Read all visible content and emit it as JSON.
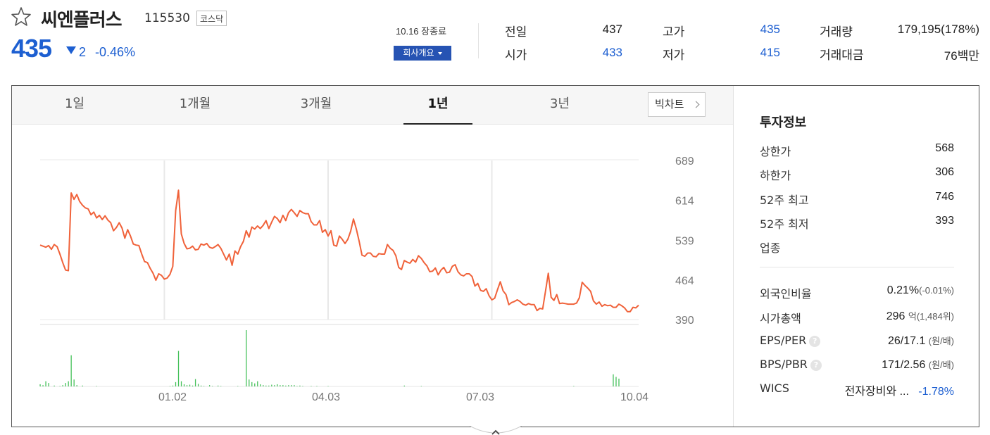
{
  "stock": {
    "name": "씨엔플러스",
    "code": "115530",
    "market": "코스닥",
    "price": "435",
    "change": "2",
    "change_rate": "-0.46%",
    "close_label": "10.16 장종료",
    "overview_btn": "회사개요"
  },
  "quote": {
    "prev_label": "전일",
    "prev": "437",
    "open_label": "시가",
    "open": "433",
    "high_label": "고가",
    "high": "435",
    "low_label": "저가",
    "low": "415",
    "volume_label": "거래량",
    "volume": "179,195(178%)",
    "amount_label": "거래대금",
    "amount": "76백만"
  },
  "tabs": [
    {
      "label": "1일",
      "active": false
    },
    {
      "label": "1개월",
      "active": false
    },
    {
      "label": "3개월",
      "active": false
    },
    {
      "label": "1년",
      "active": true
    },
    {
      "label": "3년",
      "active": false
    }
  ],
  "bigchart_label": "빅차트",
  "colors": {
    "line": "#f0623a",
    "volume": "#45c15a",
    "up": "#e02e2e",
    "down": "#1d5fd1",
    "accent": "#2653b3"
  },
  "icons": {
    "favorite": "star-outline-icon",
    "down": "triangle-down-icon",
    "more": "chevron-right-icon",
    "help": "question-circle-icon",
    "collapse": "chevron-up-icon"
  },
  "chart_data": {
    "type": "line",
    "y_ticks": [
      "689",
      "614",
      "539",
      "464",
      "390"
    ],
    "x_ticks": [
      "01.02",
      "04.03",
      "07.03",
      "10.04"
    ],
    "ylim": [
      390,
      689
    ],
    "grid": true,
    "price": [
      530,
      528,
      526,
      529,
      522,
      531,
      527,
      513,
      497,
      483,
      482,
      628,
      616,
      625,
      612,
      605,
      600,
      598,
      587,
      592,
      581,
      586,
      578,
      585,
      577,
      572,
      557,
      563,
      572,
      562,
      543,
      559,
      547,
      532,
      530,
      529,
      513,
      499,
      497,
      486,
      477,
      464,
      476,
      473,
      466,
      468,
      475,
      490,
      595,
      633,
      551,
      533,
      523,
      524,
      528,
      521,
      522,
      532,
      530,
      533,
      526,
      524,
      527,
      531,
      524,
      513,
      502,
      513,
      492,
      519,
      513,
      527,
      537,
      557,
      545,
      564,
      560,
      566,
      561,
      567,
      576,
      561,
      573,
      584,
      580,
      572,
      586,
      576,
      591,
      597,
      591,
      584,
      595,
      591,
      589,
      589,
      574,
      568,
      568,
      576,
      554,
      559,
      547,
      557,
      530,
      528,
      547,
      541,
      533,
      541,
      556,
      579,
      560,
      537,
      511,
      509,
      515,
      515,
      509,
      508,
      514,
      513,
      513,
      531,
      524,
      520,
      510,
      488,
      484,
      501,
      498,
      496,
      503,
      498,
      510,
      505,
      497,
      491,
      480,
      481,
      487,
      474,
      483,
      488,
      478,
      479,
      490,
      493,
      480,
      474,
      472,
      476,
      476,
      471,
      453,
      458,
      445,
      443,
      448,
      435,
      427,
      430,
      446,
      461,
      444,
      437,
      418,
      422,
      424,
      427,
      424,
      419,
      417,
      420,
      418,
      418,
      407,
      411,
      410,
      443,
      477,
      432,
      426,
      437,
      420,
      421,
      420,
      419,
      419,
      419,
      421,
      431,
      460,
      454,
      449,
      443,
      425,
      419,
      423,
      415,
      418,
      416,
      417,
      413,
      413,
      419,
      416,
      412,
      405,
      405,
      413,
      412,
      417
    ],
    "volume": [
      5,
      3,
      12,
      8,
      0,
      2,
      0,
      1,
      3,
      8,
      12,
      72,
      16,
      3,
      0,
      2,
      0,
      0,
      0,
      0,
      1,
      0,
      0,
      0,
      0,
      0,
      0,
      0,
      0,
      0,
      0,
      0,
      0,
      0,
      0,
      0,
      0,
      0,
      0,
      0,
      0,
      0,
      0,
      0,
      0,
      0,
      1,
      2,
      10,
      82,
      12,
      5,
      3,
      4,
      2,
      17,
      6,
      2,
      1,
      0,
      3,
      1,
      0,
      2,
      1,
      0,
      0,
      0,
      0,
      0,
      1,
      0,
      0,
      130,
      16,
      10,
      7,
      12,
      5,
      3,
      2,
      2,
      4,
      3,
      5,
      3,
      3,
      2,
      3,
      3,
      3,
      1,
      2,
      1,
      0,
      0,
      1,
      0,
      1,
      0,
      0,
      0,
      1,
      0,
      0,
      0,
      0,
      0,
      0,
      0,
      0,
      0,
      0,
      0,
      0,
      0,
      0,
      0,
      0,
      0,
      0,
      0,
      0,
      0,
      0,
      0,
      0,
      0,
      0,
      2,
      0,
      0,
      0,
      0,
      0,
      1,
      0,
      0,
      0,
      0,
      0,
      0,
      0,
      0,
      0,
      0,
      0,
      0,
      0,
      0,
      0,
      0,
      0,
      0,
      0,
      0,
      0,
      0,
      0,
      0,
      0,
      0,
      0,
      0,
      0,
      0,
      0,
      0,
      0,
      0,
      0,
      0,
      0,
      0,
      0,
      0,
      0,
      0,
      0,
      0,
      0,
      0,
      0,
      0,
      0,
      0,
      0,
      0,
      0,
      1,
      0,
      0,
      0,
      0,
      0,
      0,
      0,
      0,
      0,
      0,
      0,
      0,
      0,
      28,
      22,
      18,
      0,
      0,
      0,
      0,
      0,
      0,
      0,
      0,
      0,
      0,
      0,
      0,
      0,
      0,
      0,
      0,
      0,
      0,
      0,
      0,
      0,
      0,
      0,
      0,
      0,
      0,
      0,
      0,
      0,
      0,
      0
    ]
  },
  "invest": {
    "title": "투자정보",
    "upper_limit_label": "상한가",
    "upper_limit": "568",
    "lower_limit_label": "하한가",
    "lower_limit": "306",
    "high52_label": "52주 최고",
    "high52": "746",
    "low52_label": "52주 최저",
    "low52": "393",
    "sector_label": "업종",
    "foreign_label": "외국인비율",
    "foreign": "0.21%",
    "foreign_chg": "(-0.01%)",
    "mcap_label": "시가총액",
    "mcap": "296",
    "mcap_unit": "억",
    "mcap_rank": "(1,484위)",
    "eps_label": "EPS/PER",
    "eps": "26/17.1",
    "eps_unit": "(원/배)",
    "bps_label": "BPS/PBR",
    "bps": "171/2.56",
    "bps_unit": "(원/배)",
    "wics_label": "WICS",
    "wics": "전자장비와 ...",
    "wics_chg": "-1.78%"
  }
}
